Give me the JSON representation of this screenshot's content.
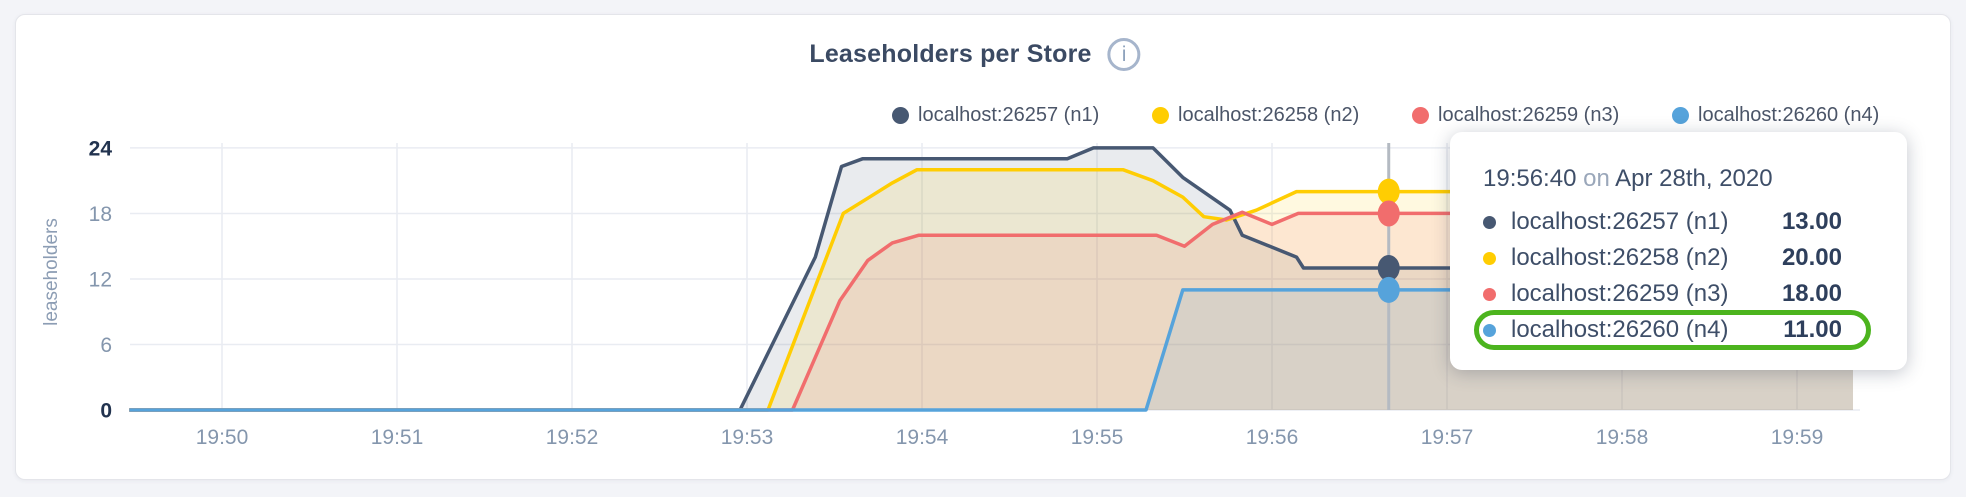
{
  "header": {
    "title": "Leaseholders per Store",
    "info_icon": "i"
  },
  "axes": {
    "x_labels": [
      "19:50",
      "19:51",
      "19:52",
      "19:53",
      "19:54",
      "19:55",
      "19:56",
      "19:57",
      "19:58",
      "19:59"
    ],
    "y_labels": [
      "0",
      "6",
      "12",
      "18",
      "24"
    ],
    "y_axis_title": "leaseholders"
  },
  "tooltip": {
    "time": "19:56:40",
    "preposition": "on",
    "date": "Apr 28th, 2020",
    "rows": [
      {
        "label": "localhost:26257 (n1)",
        "value": "13.00"
      },
      {
        "label": "localhost:26258 (n2)",
        "value": "20.00"
      },
      {
        "label": "localhost:26259 (n3)",
        "value": "18.00"
      },
      {
        "label": "localhost:26260 (n4)",
        "value": "11.00"
      }
    ],
    "highlighted_row": 3,
    "highlight_color": "#4cb41e"
  },
  "chart_data": {
    "type": "area",
    "title": "Leaseholders per Store",
    "xlabel": "",
    "ylabel": "leaseholders",
    "x_ticks": [
      "19:50",
      "19:51",
      "19:52",
      "19:53",
      "19:54",
      "19:55",
      "19:56",
      "19:57",
      "19:58",
      "19:59"
    ],
    "x_tick_spacing_minutes": 1,
    "y_ticks": [
      0,
      6,
      12,
      18,
      24
    ],
    "y_bold_ticks": [
      0,
      24
    ],
    "ylim": [
      0,
      24
    ],
    "grid": true,
    "legend_position": "top",
    "fill_opacity": 0.12,
    "date": "Apr 28th, 2020",
    "series": [
      {
        "name": "localhost:26257 (n1)",
        "color": "#475872",
        "points": [
          [
            -0.53,
            0
          ],
          [
            2.96,
            0
          ],
          [
            3.39,
            14
          ],
          [
            3.54,
            22.3
          ],
          [
            3.66,
            23
          ],
          [
            4.83,
            23
          ],
          [
            4.98,
            24
          ],
          [
            5.32,
            24
          ],
          [
            5.49,
            21.3
          ],
          [
            5.76,
            18.3
          ],
          [
            5.83,
            16
          ],
          [
            5.97,
            15.1
          ],
          [
            6.14,
            14
          ],
          [
            6.18,
            13
          ],
          [
            9.32,
            13
          ]
        ]
      },
      {
        "name": "localhost:26258 (n2)",
        "color": "#ffcd02",
        "points": [
          [
            -0.53,
            0
          ],
          [
            3.12,
            0
          ],
          [
            3.55,
            18
          ],
          [
            3.69,
            19.4
          ],
          [
            3.83,
            20.8
          ],
          [
            3.97,
            22
          ],
          [
            5.15,
            22
          ],
          [
            5.32,
            21
          ],
          [
            5.49,
            19.5
          ],
          [
            5.61,
            17.7
          ],
          [
            5.74,
            17.4
          ],
          [
            5.91,
            18.3
          ],
          [
            6.14,
            20
          ],
          [
            9.32,
            20
          ]
        ]
      },
      {
        "name": "localhost:26259 (n3)",
        "color": "#f16d6d",
        "points": [
          [
            -0.53,
            0
          ],
          [
            3.26,
            0
          ],
          [
            3.53,
            10
          ],
          [
            3.69,
            13.7
          ],
          [
            3.83,
            15.3
          ],
          [
            3.98,
            16
          ],
          [
            5.34,
            16
          ],
          [
            5.5,
            15
          ],
          [
            5.66,
            17
          ],
          [
            5.83,
            18.1
          ],
          [
            6.0,
            17
          ],
          [
            6.15,
            18
          ],
          [
            9.32,
            18
          ]
        ]
      },
      {
        "name": "localhost:26260 (n4)",
        "color": "#56a3db",
        "points": [
          [
            -0.53,
            0
          ],
          [
            5.28,
            0
          ],
          [
            5.49,
            11
          ],
          [
            9.32,
            11
          ]
        ]
      }
    ],
    "hover": {
      "time_label": "19:56:40",
      "t_minutes_after_19_50": 6.667,
      "values": [
        13,
        20,
        18,
        11
      ]
    }
  }
}
